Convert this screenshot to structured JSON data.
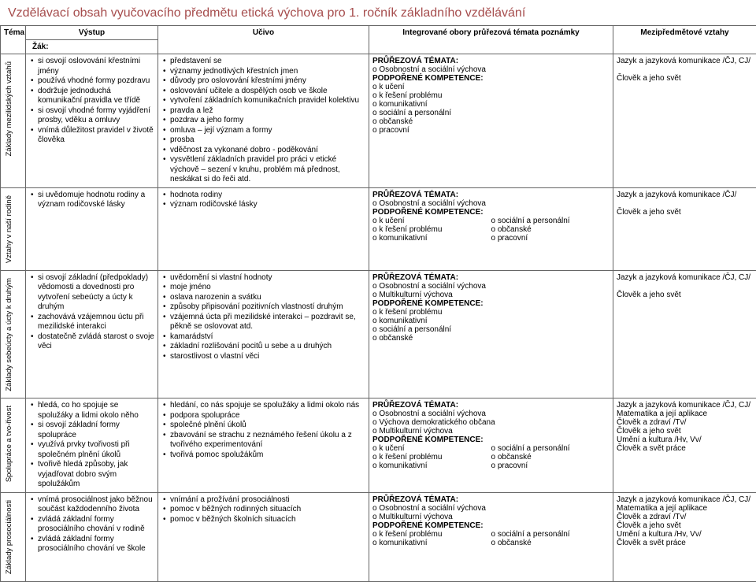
{
  "title": "Vzdělávací obsah vyučovacího předmětu etická výchova pro 1. ročník základního vzdělávání",
  "headers": {
    "tema": "Téma",
    "zak": "Žák:",
    "vystup": "Výstup",
    "ucivo": "Učivo",
    "integ": "Integrované obory průřezová témata poznámky",
    "mezi": "Mezipředmětové vztahy"
  },
  "labels": {
    "prurez": "PRŮŘEZOVÁ TÉMATA:",
    "podpor": "PODPOŘENÉ KOMPETENCE:"
  },
  "rows": [
    {
      "tema": "Základy mezilidských vztahů",
      "vystup": [
        "si osvojí oslovování křestními jmény",
        "používá vhodné formy pozdravu",
        "dodržuje jednoduchá komunikační pravidla ve třídě",
        "si osvojí vhodné formy vyjádření prosby, vděku a omluvy",
        "vnímá důležitost pravidel v životě člověka"
      ],
      "ucivo": [
        "představení se",
        "významy jednotlivých křestních jmen",
        "důvody pro oslovování křestními jmény",
        "oslovování učitele a dospělých osob ve škole",
        "vytvoření základních komunikačních pravidel kolektivu",
        "pravda a lež",
        "pozdrav a jeho formy",
        "omluva – její význam a formy",
        "prosba",
        "vděčnost za vykonané dobro - poděkování",
        "vysvětlení základních pravidel pro práci v etické výchově – sezení v kruhu, problém má přednost, neskákat si do řeči atd."
      ],
      "prurez": [
        "Osobnostní a sociální výchova"
      ],
      "komp": {
        "left": [
          "k učení",
          "k řešení problému",
          "komunikativní",
          "sociální a personální",
          "občanské",
          "pracovní"
        ],
        "right": []
      },
      "mezi": [
        "Jazyk a jazyková komunikace /ČJ, CJ/",
        "",
        "Člověk a jeho svět"
      ]
    },
    {
      "tema": "Vztahy v naší rodině",
      "vystup": [
        "si uvědomuje hodnotu rodiny a význam rodičovské lásky"
      ],
      "ucivo": [
        "hodnota rodiny",
        "význam rodičovské lásky"
      ],
      "prurez": [
        "Osobnostní a sociální výchova"
      ],
      "komp": {
        "left": [
          "k učení",
          "k řešení problému",
          "komunikativní"
        ],
        "right": [
          "sociální a personální",
          "občanské",
          "pracovní"
        ]
      },
      "mezi": [
        "Jazyk a jazyková komunikace /ČJ/",
        "",
        "Člověk a jeho svět"
      ]
    },
    {
      "tema": "Základy sebeúcty a úcty k druhým",
      "vystup": [
        "si osvojí základní (předpoklady) vědomosti a dovednosti pro vytvoření sebeúcty a úcty k druhým",
        "zachovává vzájemnou úctu při mezilidské interakci",
        "dostatečně zvládá starost o svoje věci"
      ],
      "ucivo": [
        "uvědomění si vlastní hodnoty",
        "moje jméno",
        "oslava narozenin a svátku",
        "způsoby připisování pozitivních vlastností druhým",
        "vzájemná úcta při mezilidské interakci – pozdravit se, pěkně se oslovovat atd.",
        "kamarádství",
        "základní rozlišování pocitů u sebe a u druhých",
        "starostlivost o vlastní věci"
      ],
      "prurez": [
        "Osobnostní a sociální výchova",
        "Multikulturní výchova"
      ],
      "komp": {
        "left": [
          "k řešení problému",
          "komunikativní",
          "sociální a personální",
          "občanské"
        ],
        "right": []
      },
      "mezi": [
        "Jazyk a jazyková komunikace /ČJ, CJ/",
        "",
        "Člověk a jeho svět"
      ]
    },
    {
      "tema": "Spolupráce a tvo-řivost",
      "vystup": [
        "hledá, co ho spojuje se spolužáky a lidmi okolo něho",
        "si osvojí základní formy spolupráce",
        "využívá  prvky tvořivosti při společném plnění úkolů",
        "tvořivě hledá způsoby, jak vyjadřovat dobro svým spolužákům"
      ],
      "ucivo": [
        "hledání, co nás spojuje se spolužáky a lidmi okolo nás",
        "podpora spolupráce",
        "společné plnění úkolů",
        "zbavování se strachu z neznámého řešení úkolu a z tvořivého experimentování",
        "tvořivá pomoc spolužákům"
      ],
      "prurez": [
        "Osobnostní a sociální výchova",
        "Výchova demokratického občana",
        "Multikulturní výchova"
      ],
      "komp": {
        "left": [
          "k učení",
          "k řešení problému",
          "komunikativní"
        ],
        "right": [
          "sociální a personální",
          "občanské",
          "pracovní"
        ]
      },
      "mezi": [
        "Jazyk a jazyková komunikace /ČJ, CJ/",
        "Matematika a její aplikace",
        "Člověk a zdraví /Tv/",
        "Člověk a jeho svět",
        "Umění a kultura /Hv, Vv/",
        "Člověk a svět práce"
      ]
    },
    {
      "tema": "Základy prosociálnosti",
      "vystup": [
        "vnímá prosociálnost jako běžnou součást každodenního života",
        "zvládá základní formy prosociálního chování v rodině",
        "zvládá základní formy prosociálního chování ve škole"
      ],
      "ucivo": [
        "vnímání a prožívání prosociálnosti",
        "pomoc v běžných rodinných situacích",
        "pomoc v běžných školních situacích"
      ],
      "prurez": [
        "Osobnostní a sociální výchova",
        "Multikulturní výchova"
      ],
      "komp": {
        "left": [
          "k řešení problému",
          "komunikativní"
        ],
        "right": [
          "sociální a personální",
          "občanské"
        ]
      },
      "mezi": [
        "Jazyk a jazyková komunikace /ČJ, CJ/",
        "Matematika a její aplikace",
        "Člověk a zdraví /Tv/",
        "Člověk a jeho svět",
        "Umění a kultura /Hv, Vv/",
        "Člověk a svět práce"
      ]
    }
  ]
}
